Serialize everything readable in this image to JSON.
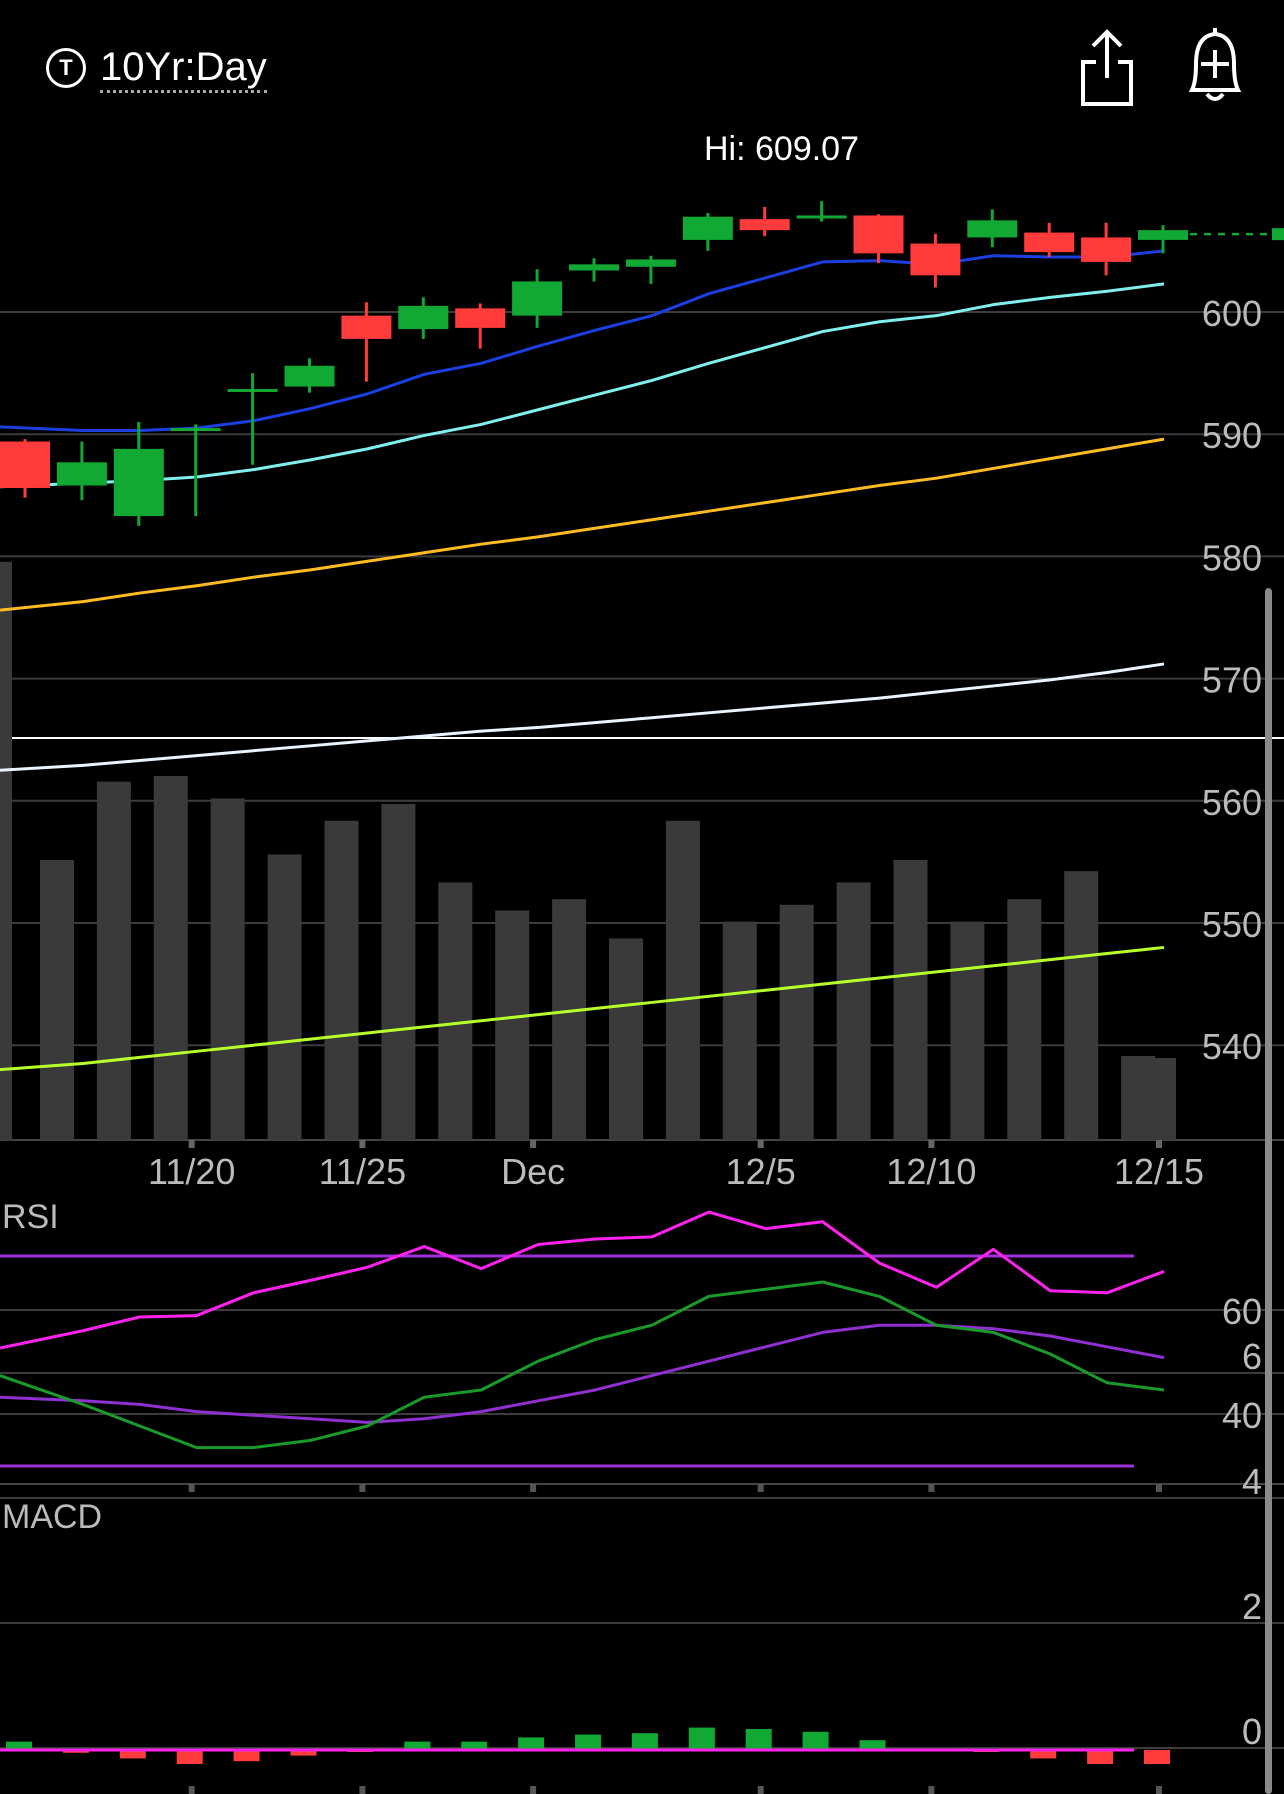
{
  "header": {
    "symbol_badge": "T",
    "symbol_label": "10Yr:Day",
    "share_icon": "share-icon",
    "alert_icon": "bell-plus-icon"
  },
  "hi_label": "Hi: 609.07",
  "colors": {
    "up": "#11a833",
    "down": "#ff3b3b",
    "ma_fast": "#1b3fe0",
    "ma_mid": "#7ff0ee",
    "ma_slow": "#ffbb22",
    "ma_200": "#e8f4ff",
    "ma_vol": "#b6ff2a",
    "volume": "#3a3a3a",
    "rsi": "#ff22ee",
    "rsi_band": "#a030d8",
    "macd": "#1a9a2a",
    "signal": "#9030d0",
    "grid": "#3c3c3c"
  },
  "chart_data": [
    {
      "type": "candlestick",
      "title": "",
      "y_axis_ticks": [
        540,
        550,
        560,
        570,
        580,
        590,
        600
      ],
      "ylim": [
        533,
        613
      ],
      "hi_marker": 609.07,
      "x_tick_labels": [
        {
          "i": 3,
          "label": "11/20"
        },
        {
          "i": 6,
          "label": "11/25"
        },
        {
          "i": 9,
          "label": "Dec"
        },
        {
          "i": 13,
          "label": "12/5"
        },
        {
          "i": 16,
          "label": "12/10"
        },
        {
          "i": 20,
          "label": "12/15"
        }
      ],
      "candles": [
        {
          "i": 0,
          "open": 589.4,
          "high": 589.6,
          "low": 584.8,
          "close": 585.6
        },
        {
          "i": 1,
          "open": 585.8,
          "high": 589.4,
          "low": 584.6,
          "close": 587.7
        },
        {
          "i": 2,
          "open": 583.3,
          "high": 591.0,
          "low": 582.5,
          "close": 588.8
        },
        {
          "i": 3,
          "open": 590.3,
          "high": 590.8,
          "low": 583.3,
          "close": 590.5
        },
        {
          "i": 4,
          "open": 593.5,
          "high": 595.0,
          "low": 587.5,
          "close": 593.7
        },
        {
          "i": 5,
          "open": 593.9,
          "high": 596.2,
          "low": 593.4,
          "close": 595.6
        },
        {
          "i": 6,
          "open": 599.7,
          "high": 600.8,
          "low": 594.3,
          "close": 597.8
        },
        {
          "i": 7,
          "open": 598.6,
          "high": 601.2,
          "low": 597.8,
          "close": 600.5
        },
        {
          "i": 8,
          "open": 600.3,
          "high": 600.7,
          "low": 597.0,
          "close": 598.7
        },
        {
          "i": 9,
          "open": 599.7,
          "high": 603.5,
          "low": 598.7,
          "close": 602.5
        },
        {
          "i": 10,
          "open": 603.4,
          "high": 604.4,
          "low": 602.5,
          "close": 603.9
        },
        {
          "i": 11,
          "open": 603.7,
          "high": 604.6,
          "low": 602.3,
          "close": 604.3
        },
        {
          "i": 12,
          "open": 605.9,
          "high": 608.1,
          "low": 605.0,
          "close": 607.8
        },
        {
          "i": 13,
          "open": 607.6,
          "high": 608.6,
          "low": 606.2,
          "close": 606.7
        },
        {
          "i": 14,
          "open": 607.8,
          "high": 609.07,
          "low": 607.4,
          "close": 607.9
        },
        {
          "i": 15,
          "open": 607.9,
          "high": 608.0,
          "low": 604.0,
          "close": 604.8
        },
        {
          "i": 16,
          "open": 605.6,
          "high": 606.4,
          "low": 602.0,
          "close": 603.0
        },
        {
          "i": 17,
          "open": 606.1,
          "high": 608.4,
          "low": 605.3,
          "close": 607.5
        },
        {
          "i": 18,
          "open": 606.5,
          "high": 607.3,
          "low": 604.5,
          "close": 604.9
        },
        {
          "i": 19,
          "open": 606.1,
          "high": 607.3,
          "low": 603.0,
          "close": 604.1
        },
        {
          "i": 20,
          "open": 605.9,
          "high": 607.1,
          "low": 604.8,
          "close": 606.7
        }
      ],
      "last_price": 606.7,
      "ma_fast": [
        590.6,
        590.3,
        590.3,
        590.5,
        591.1,
        592.1,
        593.3,
        594.9,
        595.8,
        597.2,
        598.5,
        599.7,
        601.5,
        602.8,
        604.1,
        604.2,
        603.9,
        604.6,
        604.5,
        604.5,
        605.0
      ],
      "ma_mid": [
        585.7,
        586.0,
        586.2,
        586.5,
        587.1,
        587.9,
        588.8,
        589.9,
        590.8,
        592.0,
        593.2,
        594.4,
        595.8,
        597.1,
        598.4,
        599.2,
        599.7,
        600.6,
        601.2,
        601.7,
        602.3
      ],
      "ma_slow": [
        575.6,
        576.3,
        577.0,
        577.6,
        578.3,
        578.9,
        579.6,
        580.3,
        581.0,
        581.6,
        582.3,
        583.0,
        583.7,
        584.4,
        585.1,
        585.8,
        586.4,
        587.2,
        588.0,
        588.8,
        589.6
      ],
      "ma_200": [
        562.5,
        562.9,
        563.3,
        563.7,
        564.1,
        564.5,
        564.9,
        565.3,
        565.7,
        566.0,
        566.4,
        566.8,
        567.2,
        567.6,
        568.0,
        568.4,
        568.9,
        569.4,
        569.9,
        570.5,
        571.2
      ],
      "ma_vol": [
        538.0,
        538.5,
        539.0,
        539.5,
        540.0,
        540.5,
        541.0,
        541.5,
        542.0,
        542.5,
        543.0,
        543.5,
        544.0,
        544.5,
        545.0,
        545.5,
        546.0,
        546.5,
        547.0,
        547.5,
        548.0
      ]
    },
    {
      "type": "bar",
      "title": "",
      "series": "volume",
      "values": [
        50,
        64,
        65,
        61,
        51,
        57,
        60,
        46,
        41,
        43,
        36,
        57,
        39,
        42,
        46,
        50,
        39,
        43,
        48,
        15,
        0
      ],
      "note_leading_bar": 98
    },
    {
      "type": "line",
      "title": "RSI",
      "y_axis_ticks": [
        40,
        60
      ],
      "ylim": [
        26,
        72
      ],
      "bands": [
        70,
        30
      ],
      "values": [
        55.5,
        58.0,
        60.0,
        60.2,
        63.5,
        65.3,
        67.2,
        70.2,
        67.0,
        70.5,
        71.3,
        71.6,
        75.2,
        72.8,
        73.8,
        67.8,
        64.3,
        69.8,
        63.8,
        63.5,
        66.6
      ]
    },
    {
      "type": "line",
      "title": "MACD",
      "y_axis_ticks": [
        0,
        2,
        4,
        6
      ],
      "ylim": [
        -0.8,
        6.8
      ],
      "macd": [
        5.2,
        4.8,
        4.5,
        4.2,
        4.2,
        4.3,
        4.5,
        4.9,
        5.0,
        5.4,
        5.7,
        5.9,
        6.3,
        6.4,
        6.5,
        6.3,
        5.9,
        5.8,
        5.5,
        5.1,
        5.0
      ],
      "signal": [
        4.9,
        4.85,
        4.8,
        4.7,
        4.65,
        4.6,
        4.55,
        4.6,
        4.7,
        4.85,
        5.0,
        5.2,
        5.4,
        5.6,
        5.8,
        5.9,
        5.9,
        5.85,
        5.75,
        5.6,
        5.45
      ],
      "histogram": [
        0.3,
        -0.1,
        -0.3,
        -0.5,
        -0.4,
        -0.2,
        -0.05,
        0.3,
        0.3,
        0.45,
        0.55,
        0.6,
        0.8,
        0.75,
        0.65,
        0.35,
        0.05,
        -0.05,
        -0.3,
        -0.5,
        -0.5
      ]
    }
  ]
}
